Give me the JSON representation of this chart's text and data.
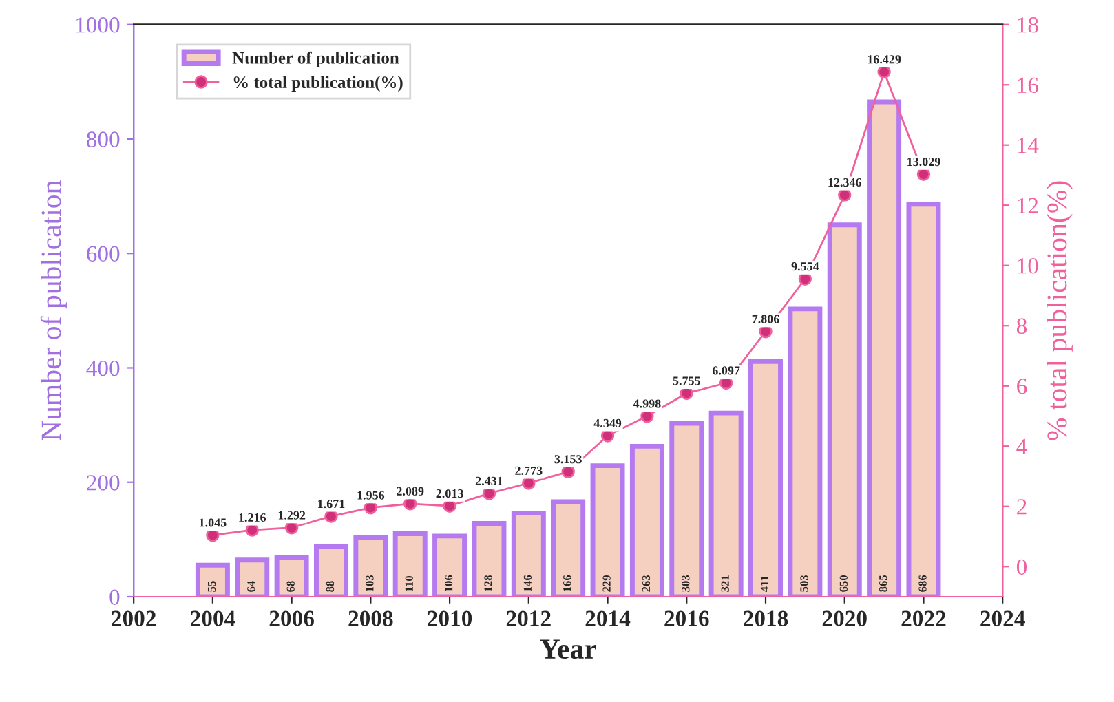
{
  "chart_data": {
    "type": "bar",
    "xlabel": "Year",
    "ylabel": "Number of publication",
    "y2label": "% total publication(%)",
    "x": [
      2004,
      2005,
      2006,
      2007,
      2008,
      2009,
      2010,
      2011,
      2012,
      2013,
      2014,
      2015,
      2016,
      2017,
      2018,
      2019,
      2020,
      2021,
      2022
    ],
    "series": [
      {
        "name": "Number of publication",
        "color": "#f5d0c0",
        "values": [
          55,
          64,
          68,
          88,
          103,
          110,
          106,
          128,
          146,
          166,
          229,
          263,
          303,
          321,
          411,
          503,
          650,
          865,
          686
        ]
      },
      {
        "name": "% total publication(%)",
        "type": "line",
        "axis": "y2",
        "color": "#f0609c",
        "values": [
          1.045,
          1.216,
          1.292,
          1.671,
          1.956,
          2.089,
          2.013,
          2.431,
          2.773,
          3.153,
          4.349,
          4.998,
          5.755,
          6.097,
          7.806,
          9.554,
          12.346,
          16.429,
          13.029
        ]
      }
    ],
    "xlim": [
      2002,
      2024
    ],
    "xticks": [
      2002,
      2004,
      2006,
      2008,
      2010,
      2012,
      2014,
      2016,
      2018,
      2020,
      2022,
      2024
    ],
    "ylim": [
      0,
      1000
    ],
    "yticks": [
      0,
      200,
      400,
      600,
      800,
      1000
    ],
    "y2lim": [
      -1,
      18
    ],
    "y2ticks": [
      0,
      2,
      4,
      6,
      8,
      10,
      12,
      14,
      16,
      18
    ],
    "data_labels": true,
    "legend": "top left",
    "marker": "circle",
    "line_style": "solid",
    "grid": false
  }
}
